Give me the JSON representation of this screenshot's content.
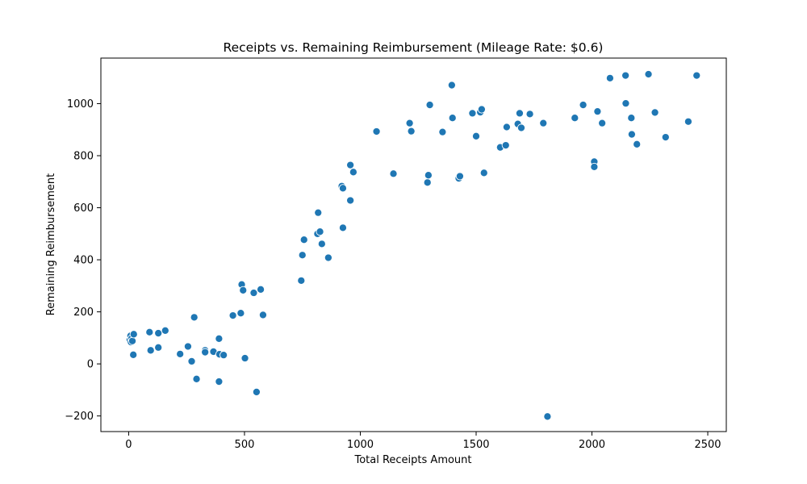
{
  "chart_data": {
    "type": "scatter",
    "title": "Receipts vs. Remaining Reimbursement (Mileage Rate: $0.6)",
    "xlabel": "Total Receipts Amount",
    "ylabel": "Remaining Reimbursement",
    "xlim": [
      -120,
      2580
    ],
    "ylim": [
      -260,
      1175
    ],
    "xticks": [
      0,
      500,
      1000,
      1500,
      2000,
      2500
    ],
    "yticks": [
      -200,
      0,
      200,
      400,
      600,
      800,
      1000
    ],
    "grid": false,
    "legend": "none",
    "colors": {
      "marker_fill": "#1f77b4",
      "marker_edge": "#ffffff",
      "axes": "#000000"
    },
    "points": [
      {
        "x": 5,
        "y": 92
      },
      {
        "x": 8,
        "y": 108
      },
      {
        "x": 10,
        "y": 84
      },
      {
        "x": 13,
        "y": 98
      },
      {
        "x": 16,
        "y": 88
      },
      {
        "x": 22,
        "y": 114
      },
      {
        "x": 20,
        "y": 35
      },
      {
        "x": 90,
        "y": 122
      },
      {
        "x": 95,
        "y": 52
      },
      {
        "x": 128,
        "y": 118
      },
      {
        "x": 128,
        "y": 63
      },
      {
        "x": 158,
        "y": 128
      },
      {
        "x": 222,
        "y": 38
      },
      {
        "x": 256,
        "y": 67
      },
      {
        "x": 272,
        "y": 10
      },
      {
        "x": 283,
        "y": 179
      },
      {
        "x": 293,
        "y": -58
      },
      {
        "x": 330,
        "y": 52
      },
      {
        "x": 330,
        "y": 45
      },
      {
        "x": 366,
        "y": 47
      },
      {
        "x": 390,
        "y": 97
      },
      {
        "x": 392,
        "y": 37
      },
      {
        "x": 390,
        "y": -68
      },
      {
        "x": 410,
        "y": 34
      },
      {
        "x": 450,
        "y": 186
      },
      {
        "x": 484,
        "y": 195
      },
      {
        "x": 488,
        "y": 305
      },
      {
        "x": 494,
        "y": 283
      },
      {
        "x": 502,
        "y": 22
      },
      {
        "x": 540,
        "y": 273
      },
      {
        "x": 552,
        "y": -108
      },
      {
        "x": 570,
        "y": 286
      },
      {
        "x": 580,
        "y": 188
      },
      {
        "x": 745,
        "y": 320
      },
      {
        "x": 750,
        "y": 418
      },
      {
        "x": 757,
        "y": 477
      },
      {
        "x": 815,
        "y": 500
      },
      {
        "x": 818,
        "y": 581
      },
      {
        "x": 826,
        "y": 508
      },
      {
        "x": 834,
        "y": 461
      },
      {
        "x": 862,
        "y": 408
      },
      {
        "x": 920,
        "y": 683
      },
      {
        "x": 925,
        "y": 675
      },
      {
        "x": 925,
        "y": 523
      },
      {
        "x": 957,
        "y": 764
      },
      {
        "x": 957,
        "y": 628
      },
      {
        "x": 970,
        "y": 737
      },
      {
        "x": 1070,
        "y": 893
      },
      {
        "x": 1143,
        "y": 731
      },
      {
        "x": 1213,
        "y": 925
      },
      {
        "x": 1220,
        "y": 894
      },
      {
        "x": 1290,
        "y": 697
      },
      {
        "x": 1294,
        "y": 725
      },
      {
        "x": 1300,
        "y": 995
      },
      {
        "x": 1355,
        "y": 891
      },
      {
        "x": 1395,
        "y": 1071
      },
      {
        "x": 1398,
        "y": 945
      },
      {
        "x": 1425,
        "y": 713
      },
      {
        "x": 1430,
        "y": 721
      },
      {
        "x": 1484,
        "y": 963
      },
      {
        "x": 1500,
        "y": 875
      },
      {
        "x": 1518,
        "y": 967
      },
      {
        "x": 1524,
        "y": 978
      },
      {
        "x": 1534,
        "y": 734
      },
      {
        "x": 1604,
        "y": 832
      },
      {
        "x": 1628,
        "y": 840
      },
      {
        "x": 1632,
        "y": 910
      },
      {
        "x": 1680,
        "y": 922
      },
      {
        "x": 1688,
        "y": 963
      },
      {
        "x": 1695,
        "y": 907
      },
      {
        "x": 1732,
        "y": 960
      },
      {
        "x": 1790,
        "y": 925
      },
      {
        "x": 1808,
        "y": -202
      },
      {
        "x": 1926,
        "y": 945
      },
      {
        "x": 1962,
        "y": 995
      },
      {
        "x": 2010,
        "y": 777
      },
      {
        "x": 2010,
        "y": 757
      },
      {
        "x": 2024,
        "y": 970
      },
      {
        "x": 2044,
        "y": 925
      },
      {
        "x": 2078,
        "y": 1098
      },
      {
        "x": 2145,
        "y": 1108
      },
      {
        "x": 2146,
        "y": 1001
      },
      {
        "x": 2170,
        "y": 945
      },
      {
        "x": 2172,
        "y": 882
      },
      {
        "x": 2194,
        "y": 844
      },
      {
        "x": 2244,
        "y": 1113
      },
      {
        "x": 2272,
        "y": 966
      },
      {
        "x": 2318,
        "y": 871
      },
      {
        "x": 2416,
        "y": 931
      },
      {
        "x": 2452,
        "y": 1108
      }
    ]
  }
}
